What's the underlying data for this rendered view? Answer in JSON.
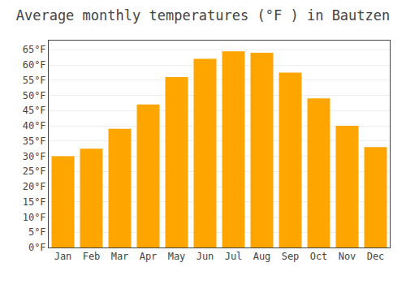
{
  "chart_data": {
    "type": "bar",
    "title": "Average monthly temperatures (°F ) in Bautzen",
    "categories": [
      "Jan",
      "Feb",
      "Mar",
      "Apr",
      "May",
      "Jun",
      "Jul",
      "Aug",
      "Sep",
      "Oct",
      "Nov",
      "Dec"
    ],
    "values": [
      30,
      32.5,
      39,
      47,
      56,
      62,
      64.5,
      64,
      57.5,
      49,
      40,
      33
    ],
    "color": "#FFA500",
    "ylim": [
      0,
      68
    ],
    "yticks": [
      {
        "value": 0,
        "label": "0°F"
      },
      {
        "value": 5,
        "label": "5°F"
      },
      {
        "value": 10,
        "label": "10°F"
      },
      {
        "value": 15,
        "label": "15°F"
      },
      {
        "value": 20,
        "label": "20°F"
      },
      {
        "value": 25,
        "label": "25°F"
      },
      {
        "value": 30,
        "label": "30°F"
      },
      {
        "value": 35,
        "label": "35°F"
      },
      {
        "value": 40,
        "label": "40°F"
      },
      {
        "value": 45,
        "label": "45°F"
      },
      {
        "value": 50,
        "label": "50°F"
      },
      {
        "value": 55,
        "label": "55°F"
      },
      {
        "value": 60,
        "label": "60°F"
      },
      {
        "value": 65,
        "label": "65°F"
      }
    ],
    "grid": true
  }
}
